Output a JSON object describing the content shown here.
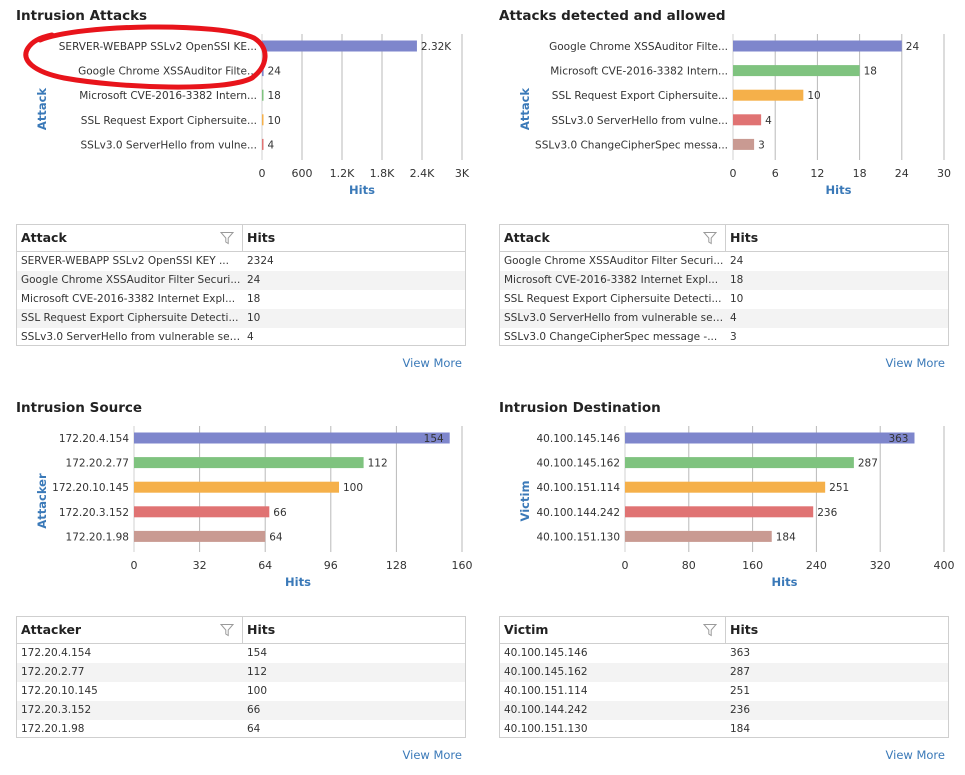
{
  "panels": [
    {
      "title": "Intrusion Attacks",
      "column1": "Attack",
      "column2": "Hits",
      "view_more": "View More",
      "rows": [
        {
          "label": "SERVER-WEBAPP SSLv2 OpenSSI KEY ...",
          "hits": "2324"
        },
        {
          "label": "Google Chrome XSSAuditor Filter Securi...",
          "hits": "24"
        },
        {
          "label": "Microsoft CVE-2016-3382 Internet Expl...",
          "hits": "18"
        },
        {
          "label": "SSL Request Export Ciphersuite Detecti...",
          "hits": "10"
        },
        {
          "label": "SSLv3.0 ServerHello from vulnerable ser...",
          "hits": "4"
        }
      ],
      "annotation": "red-circle-highlight",
      "chart_data": {
        "type": "bar",
        "orientation": "horizontal",
        "categories": [
          "SERVER-WEBAPP SSLv2 OpenSSI KE...",
          "Google Chrome XSSAuditor Filte...",
          "Microsoft CVE-2016-3382 Intern...",
          "SSL Request Export Ciphersuite...",
          "SSLv3.0 ServerHello from vulne..."
        ],
        "values": [
          2324,
          24,
          18,
          10,
          4
        ],
        "value_labels": [
          "2.32K",
          "24",
          "18",
          "10",
          "4"
        ],
        "colors": [
          "#7e86cc",
          "#7e86cc",
          "#7fc37f",
          "#f5b04a",
          "#e07373"
        ],
        "xlim": [
          0,
          3000
        ],
        "ticks": [
          0,
          600,
          1200,
          1800,
          2400,
          3000
        ],
        "tick_labels": [
          "0",
          "600",
          "1.2K",
          "1.8K",
          "2.4K",
          "3K"
        ],
        "xlabel": "Hits",
        "ylabel": "Attack",
        "grid": true
      }
    },
    {
      "title": "Attacks detected and allowed",
      "column1": "Attack",
      "column2": "Hits",
      "view_more": "View More",
      "rows": [
        {
          "label": "Google Chrome XSSAuditor Filter Securi...",
          "hits": "24"
        },
        {
          "label": "Microsoft CVE-2016-3382 Internet Expl...",
          "hits": "18"
        },
        {
          "label": "SSL Request Export Ciphersuite Detecti...",
          "hits": "10"
        },
        {
          "label": "SSLv3.0 ServerHello from vulnerable ser...",
          "hits": "4"
        },
        {
          "label": "SSLv3.0 ChangeCipherSpec message -...",
          "hits": "3"
        }
      ],
      "chart_data": {
        "type": "bar",
        "orientation": "horizontal",
        "categories": [
          "Google Chrome XSSAuditor Filte...",
          "Microsoft CVE-2016-3382 Intern...",
          "SSL Request Export Ciphersuite...",
          "SSLv3.0 ServerHello from vulne...",
          "SSLv3.0 ChangeCipherSpec messa..."
        ],
        "values": [
          24,
          18,
          10,
          4,
          3
        ],
        "value_labels": [
          "24",
          "18",
          "10",
          "4",
          "3"
        ],
        "colors": [
          "#7e86cc",
          "#7fc37f",
          "#f5b04a",
          "#e07373",
          "#c99a92"
        ],
        "xlim": [
          0,
          30
        ],
        "ticks": [
          0,
          6,
          12,
          18,
          24,
          30
        ],
        "tick_labels": [
          "0",
          "6",
          "12",
          "18",
          "24",
          "30"
        ],
        "xlabel": "Hits",
        "ylabel": "Attack",
        "grid": true
      }
    },
    {
      "title": "Intrusion Source",
      "column1": "Attacker",
      "column2": "Hits",
      "view_more": "View More",
      "rows": [
        {
          "label": "172.20.4.154",
          "hits": "154"
        },
        {
          "label": "172.20.2.77",
          "hits": "112"
        },
        {
          "label": "172.20.10.145",
          "hits": "100"
        },
        {
          "label": "172.20.3.152",
          "hits": "66"
        },
        {
          "label": "172.20.1.98",
          "hits": "64"
        }
      ],
      "chart_data": {
        "type": "bar",
        "orientation": "horizontal",
        "categories": [
          "172.20.4.154",
          "172.20.2.77",
          "172.20.10.145",
          "172.20.3.152",
          "172.20.1.98"
        ],
        "values": [
          154,
          112,
          100,
          66,
          64
        ],
        "value_labels": [
          "154",
          "112",
          "100",
          "66",
          "64"
        ],
        "colors": [
          "#7e86cc",
          "#7fc37f",
          "#f5b04a",
          "#e07373",
          "#c99a92"
        ],
        "xlim": [
          0,
          160
        ],
        "ticks": [
          0,
          32,
          64,
          96,
          128,
          160
        ],
        "tick_labels": [
          "0",
          "32",
          "64",
          "96",
          "128",
          "160"
        ],
        "xlabel": "Hits",
        "ylabel": "Attacker",
        "grid": true
      }
    },
    {
      "title": "Intrusion Destination",
      "column1": "Victim",
      "column2": "Hits",
      "view_more": "View More",
      "rows": [
        {
          "label": "40.100.145.146",
          "hits": "363"
        },
        {
          "label": "40.100.145.162",
          "hits": "287"
        },
        {
          "label": "40.100.151.114",
          "hits": "251"
        },
        {
          "label": "40.100.144.242",
          "hits": "236"
        },
        {
          "label": "40.100.151.130",
          "hits": "184"
        }
      ],
      "chart_data": {
        "type": "bar",
        "orientation": "horizontal",
        "categories": [
          "40.100.145.146",
          "40.100.145.162",
          "40.100.151.114",
          "40.100.144.242",
          "40.100.151.130"
        ],
        "values": [
          363,
          287,
          251,
          236,
          184
        ],
        "value_labels": [
          "363",
          "287",
          "251",
          "236",
          "184"
        ],
        "colors": [
          "#7e86cc",
          "#7fc37f",
          "#f5b04a",
          "#e07373",
          "#c99a92"
        ],
        "xlim": [
          0,
          400
        ],
        "ticks": [
          0,
          80,
          160,
          240,
          320,
          400
        ],
        "tick_labels": [
          "0",
          "80",
          "160",
          "240",
          "320",
          "400"
        ],
        "xlabel": "Hits",
        "ylabel": "Victim",
        "grid": true
      }
    }
  ],
  "colors": {
    "accent_blue": "#3a79b8",
    "annotation_red": "#e8141b"
  },
  "icons": {
    "filter": "funnel-filter-icon"
  }
}
